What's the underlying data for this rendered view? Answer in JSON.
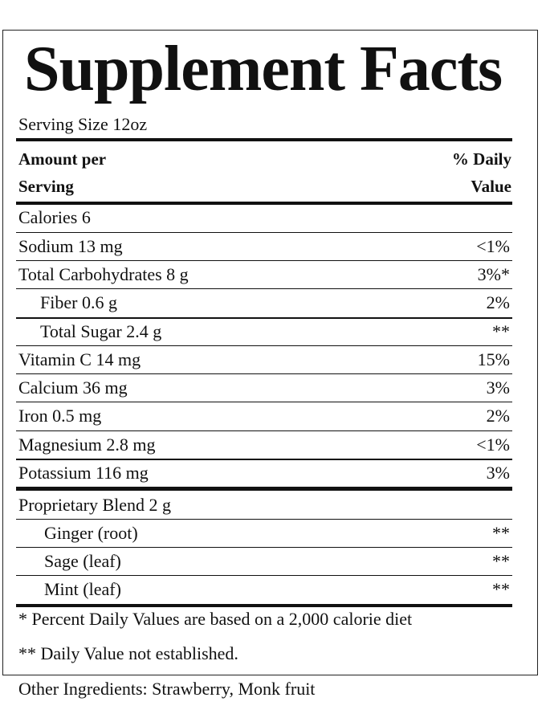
{
  "panel": {
    "title": "Supplement Facts",
    "serving_size": "Serving Size 12oz",
    "header": {
      "amount_line1": "Amount per",
      "amount_line2": "Serving",
      "dv_line1": "% Daily",
      "dv_line2": "Value"
    },
    "rows": [
      {
        "label": "Calories 6",
        "dv": "",
        "indent": 0
      },
      {
        "label": "Sodium 13 mg",
        "dv": "<1%",
        "indent": 0
      },
      {
        "label": "Total Carbohydrates 8 g",
        "dv": "3%*",
        "indent": 0
      },
      {
        "label": "Fiber 0.6 g",
        "dv": "2%",
        "indent": 1
      },
      {
        "label": "Total Sugar 2.4 g",
        "dv": "**",
        "indent": 1
      },
      {
        "label": "Vitamin C 14 mg",
        "dv": "15%",
        "indent": 0
      },
      {
        "label": "Calcium 36 mg",
        "dv": "3%",
        "indent": 0
      },
      {
        "label": "Iron 0.5 mg",
        "dv": "2%",
        "indent": 0
      },
      {
        "label": "Magnesium 2.8 mg",
        "dv": "<1%",
        "indent": 0
      },
      {
        "label": "Potassium 116 mg",
        "dv": "3%",
        "indent": 0
      },
      {
        "label": "Proprietary Blend 2 g",
        "dv": "",
        "indent": 0
      },
      {
        "label": "Ginger (root)",
        "dv": "**",
        "indent": 2
      },
      {
        "label": "Sage (leaf)",
        "dv": "**",
        "indent": 2
      },
      {
        "label": "Mint (leaf)",
        "dv": "**",
        "indent": 2
      }
    ],
    "footnote1": "* Percent Daily Values are based on a  2,000 calorie diet",
    "footnote2": "** Daily Value not established."
  },
  "other_ingredients": "Other Ingredients: Strawberry,  Monk fruit"
}
